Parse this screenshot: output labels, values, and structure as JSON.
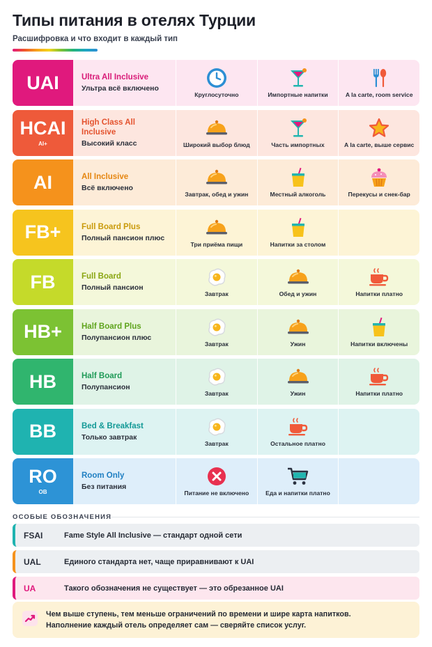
{
  "header": {
    "title": "Типы питания в отелях Турции",
    "subtitle": "Расшифровка и что входит в каждый тип"
  },
  "rows": [
    {
      "code": "UAI",
      "code_sub": "",
      "name_en": "Ultra All Inclusive",
      "name_ru": "Ультра всё включено",
      "color": "#e0197d",
      "bg": "#fde6f1",
      "en_color": "#d81b78",
      "features": [
        {
          "icon": "clock-icon",
          "label": "Круглосуточно"
        },
        {
          "icon": "cocktail-icon",
          "label": "Импортные напитки"
        },
        {
          "icon": "fork-spoon-icon",
          "label": "A la carte, room service"
        }
      ]
    },
    {
      "code": "HCAI",
      "code_sub": "AI+",
      "name_en": "High Class All Inclusive",
      "name_ru": "Высокий класс",
      "color": "#ee5a3a",
      "bg": "#fde6df",
      "en_color": "#e4532f",
      "features": [
        {
          "icon": "cloche-icon",
          "label": "Широкий выбор блюд"
        },
        {
          "icon": "cocktail-icon",
          "label": "Часть импортных"
        },
        {
          "icon": "star-icon",
          "label": "A la carte, выше сервис"
        }
      ]
    },
    {
      "code": "AI",
      "code_sub": "",
      "name_en": "All Inclusive",
      "name_ru": "Всё включено",
      "color": "#f5921c",
      "bg": "#fdebd8",
      "en_color": "#e58611",
      "features": [
        {
          "icon": "cloche-icon",
          "label": "Завтрак, обед и ужин"
        },
        {
          "icon": "soft-drink-icon",
          "label": "Местный алкоголь"
        },
        {
          "icon": "cupcake-icon",
          "label": "Перекусы и снек-бар"
        }
      ]
    },
    {
      "code": "FB+",
      "code_sub": "",
      "name_en": "Full Board Plus",
      "name_ru": "Полный пансион плюс",
      "color": "#f6c41e",
      "bg": "#fdf4d6",
      "en_color": "#c99a0a",
      "features": [
        {
          "icon": "cloche-icon",
          "label": "Три приёма пищи"
        },
        {
          "icon": "soft-drink-icon",
          "label": "Напитки за столом"
        },
        {
          "icon": "",
          "label": ""
        }
      ]
    },
    {
      "code": "FB",
      "code_sub": "",
      "name_en": "Full Board",
      "name_ru": "Полный пансион",
      "color": "#c5da2a",
      "bg": "#f4f8da",
      "en_color": "#8aa612",
      "features": [
        {
          "icon": "egg-icon",
          "label": "Завтрак"
        },
        {
          "icon": "cloche-icon",
          "label": "Обед и ужин"
        },
        {
          "icon": "coffee-cup-icon",
          "label": "Напитки платно"
        }
      ]
    },
    {
      "code": "HB+",
      "code_sub": "",
      "name_en": "Half Board Plus",
      "name_ru": "Полупансион плюс",
      "color": "#7cc233",
      "bg": "#e9f5dc",
      "en_color": "#5fa41d",
      "features": [
        {
          "icon": "egg-icon",
          "label": "Завтрак"
        },
        {
          "icon": "cloche-icon",
          "label": "Ужин"
        },
        {
          "icon": "soft-drink-icon",
          "label": "Напитки включены"
        }
      ]
    },
    {
      "code": "HB",
      "code_sub": "",
      "name_en": "Half Board",
      "name_ru": "Полупансион",
      "color": "#30b56e",
      "bg": "#dff3e7",
      "en_color": "#1f9a57",
      "features": [
        {
          "icon": "egg-icon",
          "label": "Завтрак"
        },
        {
          "icon": "cloche-icon",
          "label": "Ужин"
        },
        {
          "icon": "coffee-cup-icon",
          "label": "Напитки платно"
        }
      ]
    },
    {
      "code": "BB",
      "code_sub": "",
      "name_en": "Bed & Breakfast",
      "name_ru": "Только завтрак",
      "color": "#1fb3b0",
      "bg": "#ddf3f2",
      "en_color": "#129996",
      "features": [
        {
          "icon": "egg-icon",
          "label": "Завтрак"
        },
        {
          "icon": "coffee-cup-icon",
          "label": "Остальное платно"
        },
        {
          "icon": "",
          "label": ""
        }
      ]
    },
    {
      "code": "RO",
      "code_sub": "OB",
      "name_en": "Room Only",
      "name_ru": "Без питания",
      "color": "#2d93d6",
      "bg": "#deeefa",
      "en_color": "#1f7fc2",
      "features": [
        {
          "icon": "no-food-icon",
          "label": "Питание не включено"
        },
        {
          "icon": "cart-icon",
          "label": "Еда и напитки платно"
        },
        {
          "icon": "",
          "label": ""
        }
      ]
    }
  ],
  "special": {
    "label": "ОСОБЫЕ ОБОЗНАЧЕНИЯ",
    "notes": [
      {
        "code": "FSAI",
        "text": "Fame Style All Inclusive — стандарт одной сети",
        "color": "#1fb3b0",
        "bg": "#eceff2",
        "code_color": "#2a2f3a"
      },
      {
        "code": "UAL",
        "text": "Единого стандарта нет, чаще приравнивают к UAI",
        "color": "#f5921c",
        "bg": "#eceff2",
        "code_color": "#2a2f3a"
      },
      {
        "code": "UA",
        "text": "Такого обозначения не существует — это обрезанное UAI",
        "color": "#e0197d",
        "bg": "#fde6ee",
        "code_color": "#e0197d"
      }
    ],
    "tip": {
      "icon": "trend-up-icon",
      "line1": "Чем выше ступень, тем меньше ограничений по времени и шире карта напитков.",
      "line2": "Наполнение каждый отель определяет сам — сверяйте список услуг."
    }
  }
}
